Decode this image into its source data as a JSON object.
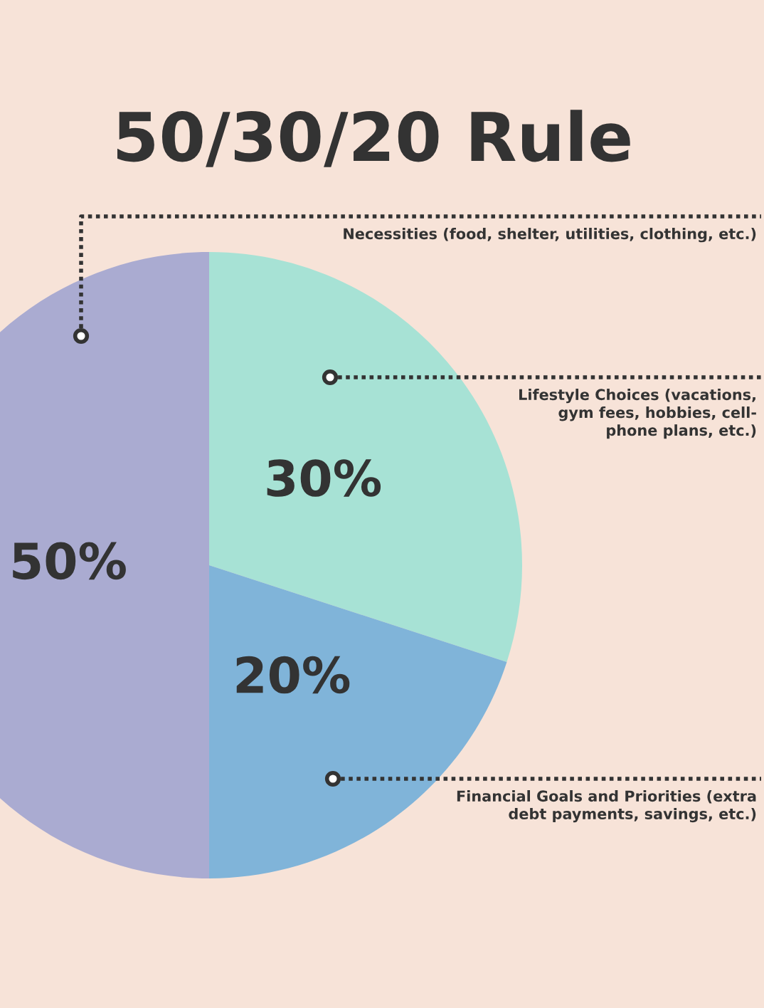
{
  "chart_data": {
    "type": "pie",
    "title": "50/30/20 Rule",
    "categories": [
      "Lifestyle Choices (vacations,\ngym fees, hobbies, cell-\nphone plans, etc.)",
      "Financial Goals and Priorities (extra\ndebt payments, savings, etc.)",
      "Necessities (food, shelter, utilities, clothing, etc.)"
    ],
    "values": [
      30,
      20,
      50
    ],
    "colors": [
      "#a7e2d5",
      "#80b4d9",
      "#aaabd1"
    ],
    "value_labels": [
      "30%",
      "20%",
      "50%"
    ],
    "legend": false
  }
}
